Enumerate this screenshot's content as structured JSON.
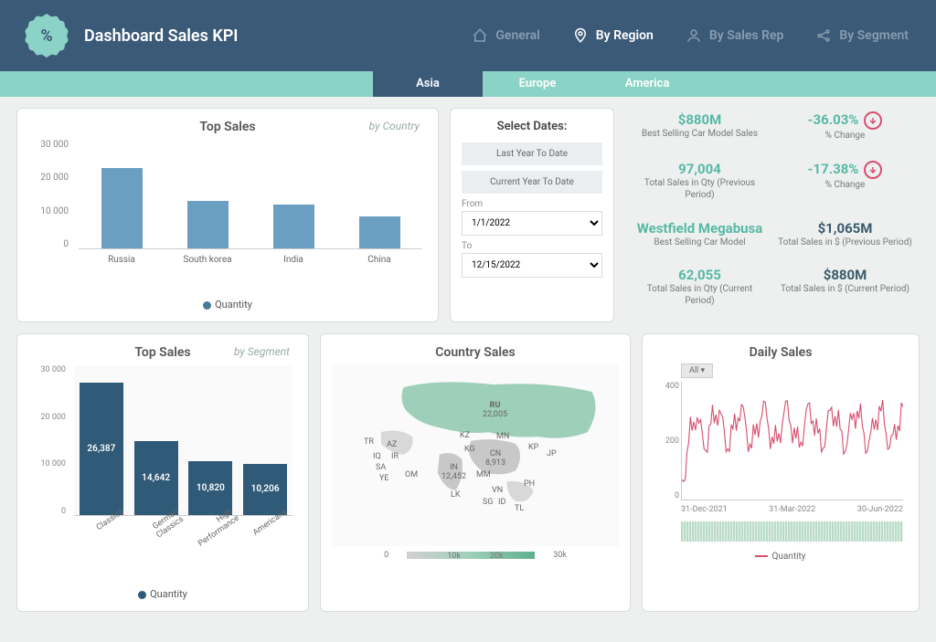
{
  "header": {
    "title": "Dashboard Sales KPI",
    "tabs": [
      {
        "label": "General",
        "icon": "home"
      },
      {
        "label": "By Region",
        "icon": "pin",
        "active": true
      },
      {
        "label": "By Sales Rep",
        "icon": "person"
      },
      {
        "label": "By Segment",
        "icon": "share"
      }
    ]
  },
  "subnav": {
    "tabs": [
      {
        "label": "Asia",
        "active": true
      },
      {
        "label": "Europe"
      },
      {
        "label": "America"
      }
    ]
  },
  "top_sales": {
    "title": "Top Sales",
    "subtitle": "by Country",
    "type": "bar",
    "y_ticks": [
      "30 000",
      "20 000",
      "10 000",
      "0"
    ],
    "ymax": 30000,
    "bar_color": "#6b9fc2",
    "legend": "Quantity",
    "data": [
      {
        "label": "Russia",
        "value": 22000
      },
      {
        "label": "South korea",
        "value": 13000
      },
      {
        "label": "India",
        "value": 12000
      },
      {
        "label": "China",
        "value": 8800
      }
    ]
  },
  "dates": {
    "title": "Select Dates:",
    "btn1": "Last Year To Date",
    "btn2": "Current Year To Date",
    "from_label": "From",
    "from_value": "1/1/2022",
    "to_label": "To",
    "to_value": "12/15/2022"
  },
  "kpis": [
    {
      "value": "$880M",
      "label": "Best Selling Car Model Sales",
      "color": "teal"
    },
    {
      "value": "-36.03%",
      "label": "% Change",
      "color": "teal",
      "arrow": true
    },
    {
      "value": "97,004",
      "label": "Total Sales in Qty (Previous Period)",
      "color": "teal"
    },
    {
      "value": "-17.38%",
      "label": "% Change",
      "color": "teal",
      "arrow": true
    },
    {
      "value": "Westfield Megabusa",
      "label": "Best Selling Car Model",
      "color": "teal"
    },
    {
      "value": "$1,065M",
      "label": "Total Sales in $ (Previous Period)",
      "color": "dark"
    },
    {
      "value": "62,055",
      "label": "Total Sales in Qty (Current Period)",
      "color": "teal"
    },
    {
      "value": "$880M",
      "label": "Total Sales in $ (Current Period)",
      "color": "dark"
    }
  ],
  "top_segment": {
    "title": "Top Sales",
    "subtitle": "by Segment",
    "type": "bar",
    "y_ticks": [
      "30 000",
      "20 000",
      "10 000",
      "0"
    ],
    "ymax": 30000,
    "bar_color": "#2f5a78",
    "legend": "Quantity",
    "data": [
      {
        "label": "Classics",
        "value": 26387,
        "display": "26,387"
      },
      {
        "label": "German Classics",
        "value": 14642,
        "display": "14,642"
      },
      {
        "label": "High Performance",
        "value": 10820,
        "display": "10,820"
      },
      {
        "label": "Americana",
        "value": 10206,
        "display": "10,206"
      }
    ]
  },
  "country_sales": {
    "title": "Country Sales",
    "type": "map",
    "scale_ticks": [
      "0",
      "10k",
      "20k",
      "30k"
    ],
    "highlight": {
      "code": "RU",
      "value": "22,005"
    },
    "countries": [
      "TR",
      "AZ",
      "IR",
      "IQ",
      "SA",
      "YE",
      "OM",
      "KZ",
      "KG",
      "IN",
      "LK",
      "CN",
      "MN",
      "MM",
      "VN",
      "SG",
      "ID",
      "TL",
      "PH",
      "KP",
      "JP"
    ],
    "cn_value": "8,913",
    "in_value": "12,452"
  },
  "daily_sales": {
    "title": "Daily Sales",
    "type": "line",
    "all_btn": "All ▾",
    "y_ticks": [
      "400",
      "200",
      "0"
    ],
    "x_ticks": [
      "31-Dec-2021",
      "31-Mar-2022",
      "30-Jun-2022"
    ],
    "line_color": "#d94f6e",
    "legend": "Quantity"
  }
}
